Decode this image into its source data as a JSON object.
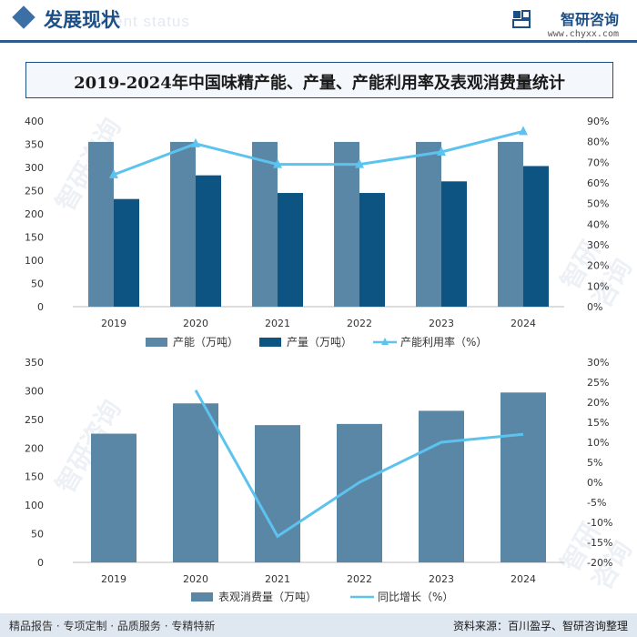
{
  "header": {
    "title": "发展现状",
    "subtitle": "ment status",
    "brand_name": "智研咨询",
    "brand_url": "www.chyxx.com",
    "title_color": "#1b4f86",
    "line_color": "#2d5b8c"
  },
  "chart_title": "2019-2024年中国味精产能、产量、产能利用率及表观消费量统计",
  "chart_data": [
    {
      "type": "bar",
      "categories": [
        "2019",
        "2020",
        "2021",
        "2022",
        "2023",
        "2024"
      ],
      "series": [
        {
          "name": "产能（万吨）",
          "kind": "bar",
          "color": "#5b87a6",
          "values": [
            355,
            355,
            355,
            355,
            355,
            355
          ]
        },
        {
          "name": "产量（万吨）",
          "kind": "bar",
          "color": "#0d5482",
          "values": [
            232,
            283,
            245,
            245,
            270,
            303
          ]
        },
        {
          "name": "产能利用率（%）",
          "kind": "line",
          "axis": "right",
          "color": "#5bc3ee",
          "values": [
            64,
            79,
            69,
            69,
            75,
            85
          ]
        }
      ],
      "y_left": {
        "min": 0,
        "max": 400,
        "step": 50,
        "ticks": [
          "0",
          "50",
          "100",
          "150",
          "200",
          "250",
          "300",
          "350",
          "400"
        ]
      },
      "y_right": {
        "min": 0,
        "max": 90,
        "step": 10,
        "ticks": [
          "0%",
          "10%",
          "20%",
          "30%",
          "40%",
          "50%",
          "60%",
          "70%",
          "80%",
          "90%"
        ]
      }
    },
    {
      "type": "bar",
      "categories": [
        "2019",
        "2020",
        "2021",
        "2022",
        "2023",
        "2024"
      ],
      "series": [
        {
          "name": "表观消费量（万吨）",
          "kind": "bar",
          "color": "#5b87a6",
          "values": [
            225,
            278,
            240,
            242,
            265,
            297
          ]
        },
        {
          "name": "同比增长（%）",
          "kind": "line",
          "axis": "right",
          "color": "#5bc3ee",
          "values": [
            null,
            23,
            -13.5,
            0,
            10,
            12
          ]
        }
      ],
      "y_left": {
        "min": 0,
        "max": 350,
        "step": 50,
        "ticks": [
          "0",
          "50",
          "100",
          "150",
          "200",
          "250",
          "300",
          "350"
        ]
      },
      "y_right": {
        "min": -20,
        "max": 30,
        "step": 5,
        "ticks": [
          "-20%",
          "-15%",
          "-10%",
          "-5%",
          "0%",
          "5%",
          "10%",
          "15%",
          "20%",
          "25%",
          "30%"
        ]
      }
    }
  ],
  "watermark": "智研咨询",
  "footer": {
    "left": "精品报告 · 专项定制 · 品质服务 · 专精特新",
    "right": "资料来源：百川盈孚、智研咨询整理"
  }
}
